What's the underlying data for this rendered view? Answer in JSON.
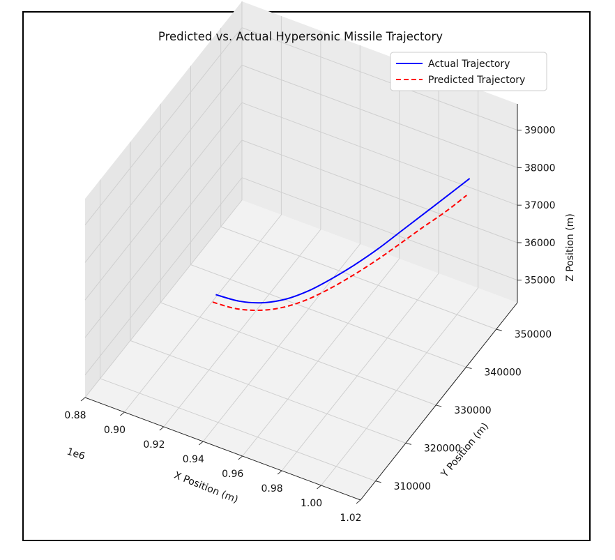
{
  "chart_data": {
    "type": "line3d",
    "title": "Predicted vs. Actual Hypersonic Missile Trajectory",
    "xlabel": "X Position (m)",
    "ylabel": "Y Position (m)",
    "zlabel": "Z Position (m)",
    "x_offset_label": "1e6",
    "xticks": [
      "0.88",
      "0.90",
      "0.92",
      "0.94",
      "0.96",
      "0.98",
      "1.00",
      "1.02"
    ],
    "yticks": [
      "310000",
      "320000",
      "330000",
      "340000",
      "350000"
    ],
    "zticks": [
      "35000",
      "36000",
      "37000",
      "38000",
      "39000"
    ],
    "xlim": [
      0.88,
      1.02
    ],
    "ylim": [
      305000,
      357000
    ],
    "zlim": [
      34400,
      39700
    ],
    "grid": true,
    "legend_position": "top-right",
    "series": [
      {
        "name": "Actual Trajectory",
        "color": "#0000ff",
        "style": "solid",
        "x": [
          0.905,
          0.915,
          0.925,
          0.935,
          0.945,
          0.955,
          0.965,
          0.975,
          0.985,
          0.995,
          1.005,
          1.014
        ],
        "y": [
          332000,
          333200,
          334400,
          335600,
          336800,
          338000,
          339200,
          340400,
          341600,
          342800,
          344000,
          345100
        ],
        "z": [
          34900,
          34800,
          34830,
          35000,
          35300,
          35700,
          36150,
          36650,
          37200,
          37750,
          38300,
          38800
        ]
      },
      {
        "name": "Predicted Trajectory",
        "color": "#ff0000",
        "style": "dashed",
        "x": [
          0.905,
          0.915,
          0.925,
          0.935,
          0.945,
          0.955,
          0.965,
          0.975,
          0.985,
          0.995,
          1.005,
          1.014
        ],
        "y": [
          331000,
          332200,
          333400,
          334600,
          335800,
          337000,
          338200,
          339400,
          340600,
          341800,
          343000,
          344100
        ],
        "z": [
          34800,
          34700,
          34730,
          34880,
          35150,
          35520,
          35950,
          36420,
          36930,
          37450,
          37950,
          38450
        ]
      }
    ]
  }
}
